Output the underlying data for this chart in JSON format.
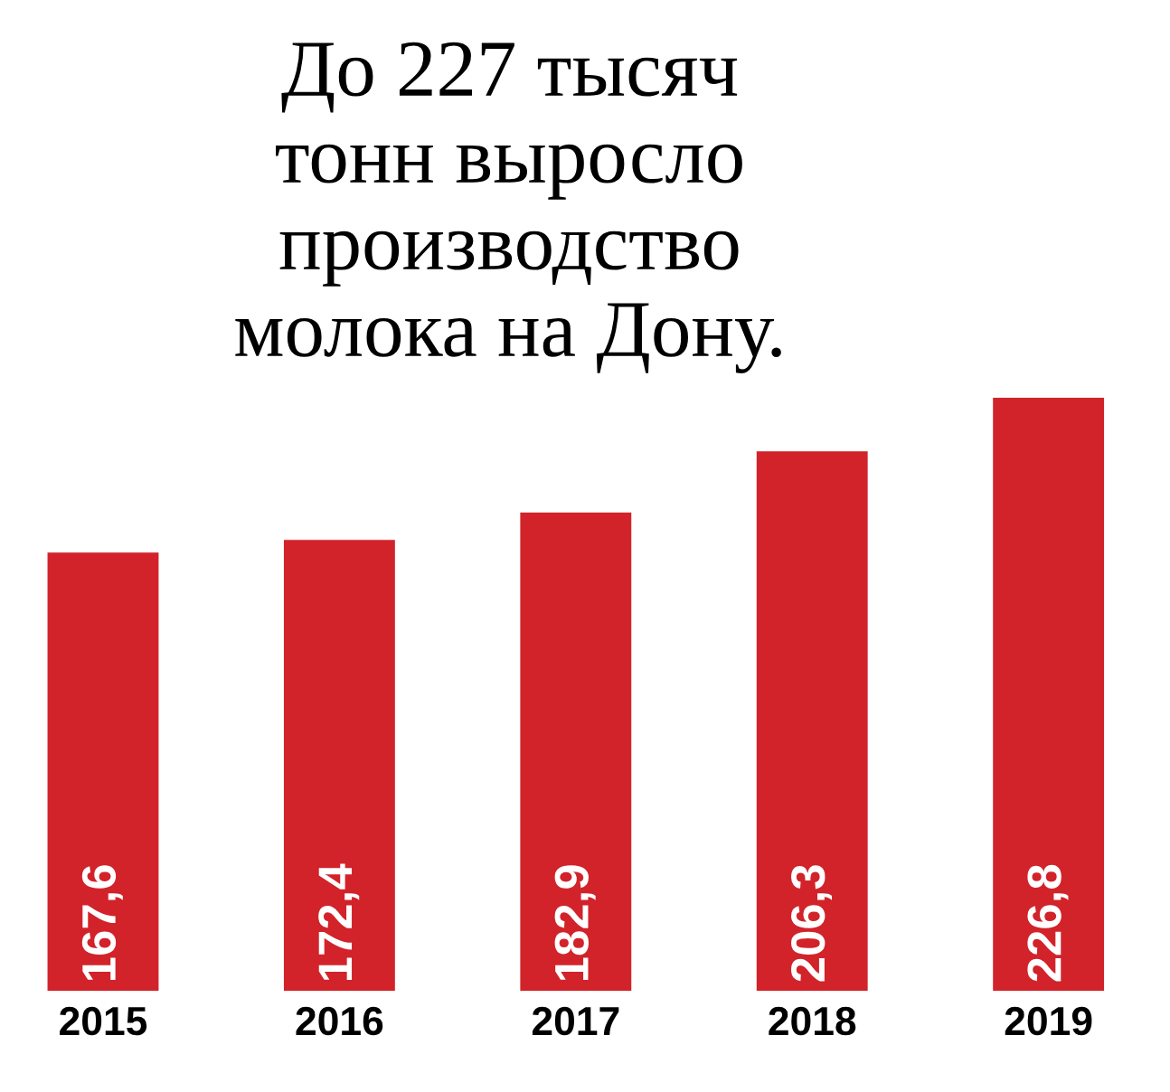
{
  "chart_data": {
    "type": "bar",
    "title": "До 227 тысяч\nтонн выросло\nпроизводство\nмолока на Дону.",
    "categories": [
      "2015",
      "2016",
      "2017",
      "2018",
      "2019"
    ],
    "values": [
      167.6,
      172.4,
      182.9,
      206.3,
      226.8
    ],
    "value_labels": [
      "167,6",
      "172,4",
      "182,9",
      "206,3",
      "226,8"
    ],
    "color": "#d2232a",
    "tick_labels": "x",
    "grid": false,
    "legend": false
  }
}
